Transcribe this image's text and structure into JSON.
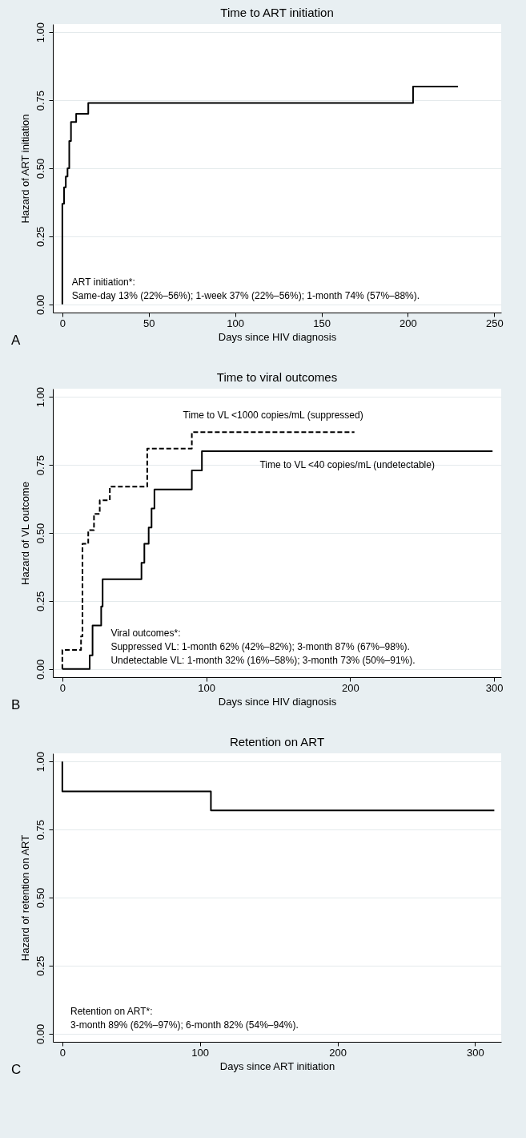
{
  "chart_data": [
    {
      "type": "step",
      "title": "Time to ART initiation",
      "xlabel": "Days since HIV diagnosis",
      "ylabel": "Hazard of ART initiation",
      "xlim": [
        -5.5,
        254
      ],
      "ylim": [
        -0.03,
        1.03
      ],
      "xticks": [
        0,
        50,
        100,
        150,
        200,
        250
      ],
      "yticks": [
        {
          "value": 0,
          "label": "0.00"
        },
        {
          "value": 0.25,
          "label": "0.25"
        },
        {
          "value": 0.5,
          "label": "0.50"
        },
        {
          "value": 0.75,
          "label": "0.75"
        },
        {
          "value": 1,
          "label": "1.00"
        }
      ],
      "grid": "y",
      "series": [
        {
          "color": "#000000",
          "line_style": "solid",
          "x": [
            0,
            0,
            1,
            2,
            3,
            4,
            5,
            8,
            15,
            203,
            229
          ],
          "values": [
            0,
            0.37,
            0.43,
            0.47,
            0.5,
            0.6,
            0.67,
            0.7,
            0.74,
            0.8,
            0.8
          ]
        }
      ],
      "annotations": [
        "A",
        "ART initiation*:",
        "Same-day 13% (22%–56%); 1-week 37% (22%–56%); 1-month 74% (57%–88%)."
      ]
    },
    {
      "type": "step",
      "title": "Time to viral outcomes",
      "xlabel": "Days since HIV diagnosis",
      "ylabel": "Hazard of VL outcome",
      "xlim": [
        -6.6,
        305
      ],
      "ylim": [
        -0.03,
        1.03
      ],
      "xticks": [
        0,
        100,
        200,
        300
      ],
      "yticks": [
        {
          "value": 0,
          "label": "0.00"
        },
        {
          "value": 0.25,
          "label": "0.25"
        },
        {
          "value": 0.5,
          "label": "0.50"
        },
        {
          "value": 0.75,
          "label": "0.75"
        },
        {
          "value": 1,
          "label": "1.00"
        }
      ],
      "grid": "y",
      "series": [
        {
          "name": "Time to VL <1000 copies/mL (suppressed)",
          "color": "#000000",
          "line_style": "dashed",
          "x": [
            0,
            0,
            13,
            14,
            18,
            22,
            26,
            33,
            59,
            90,
            203
          ],
          "values": [
            0,
            0.07,
            0.12,
            0.46,
            0.51,
            0.57,
            0.62,
            0.67,
            0.81,
            0.87,
            0.87
          ]
        },
        {
          "name": "Time to VL <40 copies/mL (undetectable)",
          "color": "#000000",
          "line_style": "solid",
          "x": [
            0,
            19,
            21,
            27,
            28,
            55,
            57,
            60,
            62,
            64,
            90,
            97,
            299
          ],
          "values": [
            0,
            0.05,
            0.16,
            0.23,
            0.33,
            0.39,
            0.46,
            0.52,
            0.59,
            0.66,
            0.73,
            0.8,
            0.8
          ]
        }
      ],
      "annotations": [
        "B",
        "Viral outcomes*:",
        "Suppressed VL: 1-month 62% (42%–82%); 3-month 87% (67%–98%).",
        "Undetectable VL: 1-month 32% (16%–58%); 3-month 73% (50%–91%)."
      ]
    },
    {
      "type": "step",
      "title": "Retention on ART",
      "xlabel": "Days since ART initiation",
      "ylabel": "Hazard of retention on ART",
      "xlim": [
        -6.9,
        319
      ],
      "ylim": [
        -0.03,
        1.03
      ],
      "xticks": [
        0,
        100,
        200,
        300
      ],
      "yticks": [
        {
          "value": 0,
          "label": "0.00"
        },
        {
          "value": 0.25,
          "label": "0.25"
        },
        {
          "value": 0.5,
          "label": "0.50"
        },
        {
          "value": 0.75,
          "label": "0.75"
        },
        {
          "value": 1,
          "label": "1.00"
        }
      ],
      "grid": "y",
      "series": [
        {
          "color": "#000000",
          "line_style": "solid",
          "x": [
            0,
            0,
            108,
            314
          ],
          "values": [
            1,
            0.89,
            0.82,
            0.82
          ]
        }
      ],
      "annotations": [
        "C",
        "Retention on ART*:",
        "3-month 89% (62%–97%); 6-month 82% (54%–94%)."
      ]
    }
  ]
}
